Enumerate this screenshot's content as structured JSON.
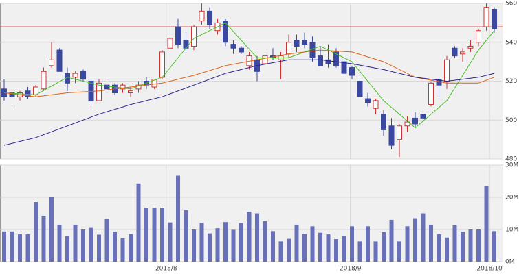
{
  "chart_data": [
    {
      "type": "candlestick",
      "open": [
        516,
        514,
        512,
        515,
        513,
        516,
        528,
        536,
        524,
        522,
        525,
        520,
        510,
        518,
        518,
        516,
        514,
        516,
        520,
        517,
        522,
        537,
        548,
        541,
        538,
        551,
        556,
        546,
        551,
        539,
        537,
        528,
        531,
        529,
        533,
        531,
        534,
        541,
        541,
        540,
        533,
        531,
        535,
        530,
        527,
        520,
        511,
        506,
        503,
        497,
        490,
        497,
        501,
        503,
        508,
        521,
        520,
        537,
        534,
        537,
        540,
        548,
        557
      ],
      "high": [
        521,
        516,
        515,
        517,
        518,
        527,
        540,
        537,
        527,
        525,
        526,
        521,
        521,
        521,
        519,
        519,
        517,
        520,
        522,
        521,
        536,
        544,
        552,
        545,
        549,
        560,
        558,
        552,
        552,
        541,
        538,
        535,
        533,
        534,
        537,
        535,
        544,
        544,
        545,
        543,
        538,
        539,
        537,
        532,
        528,
        522,
        514,
        511,
        505,
        501,
        498,
        502,
        504,
        504,
        520,
        522,
        533,
        538,
        537,
        541,
        547,
        560,
        558
      ],
      "low": [
        510,
        507,
        510,
        511,
        512,
        515,
        527,
        525,
        515,
        519,
        520,
        508,
        510,
        515,
        513,
        514,
        512,
        514,
        516,
        516,
        521,
        535,
        537,
        535,
        536,
        549,
        547,
        544,
        538,
        534,
        534,
        526,
        520,
        528,
        531,
        521,
        532,
        535,
        537,
        530,
        528,
        527,
        527,
        523,
        521,
        512,
        507,
        503,
        492,
        485,
        481,
        494,
        496,
        499,
        507,
        512,
        516,
        532,
        530,
        535,
        538,
        546,
        545
      ],
      "close": [
        512,
        512,
        514,
        512,
        517,
        525,
        531,
        525,
        519,
        524,
        521,
        510,
        519,
        516,
        514,
        518,
        515,
        518,
        518,
        521,
        535,
        542,
        539,
        537,
        548,
        556,
        549,
        550,
        540,
        537,
        535,
        533,
        525,
        533,
        532,
        533,
        540,
        538,
        539,
        532,
        528,
        529,
        528,
        524,
        523,
        512,
        509,
        510,
        495,
        487,
        497,
        499,
        498,
        501,
        519,
        518,
        531,
        533,
        535,
        538,
        546,
        558,
        547
      ],
      "up_color": "#d03030",
      "down_color": "#3a48a0",
      "series": [
        {
          "color": "#44c020",
          "x": [
            0,
            4,
            8,
            12,
            16,
            20,
            24,
            28,
            32,
            36,
            40,
            44,
            48,
            52,
            56,
            60,
            62
          ],
          "values": [
            514,
            513,
            522,
            518,
            516,
            522,
            542,
            550,
            532,
            532,
            538,
            530,
            510,
            496,
            510,
            536,
            546
          ]
        },
        {
          "color": "#e06010",
          "x": [
            0,
            4,
            8,
            12,
            16,
            20,
            24,
            28,
            32,
            36,
            40,
            44,
            48,
            52,
            56,
            60,
            62
          ],
          "values": [
            514,
            512,
            514,
            515,
            517,
            519,
            523,
            528,
            531,
            534,
            536,
            535,
            530,
            522,
            519,
            519,
            522
          ]
        },
        {
          "color": "#302090",
          "x": [
            0,
            4,
            8,
            12,
            16,
            20,
            24,
            28,
            32,
            36,
            40,
            44,
            48,
            52,
            56,
            60,
            62
          ],
          "values": [
            487,
            491,
            497,
            503,
            508,
            512,
            518,
            524,
            528,
            531,
            531,
            529,
            526,
            522,
            520,
            522,
            524
          ]
        }
      ],
      "reference_line": 548,
      "reference_color": "#e06060",
      "ylim": [
        480,
        560
      ],
      "yticks": [
        480,
        500,
        520,
        540,
        560
      ],
      "xticks": [
        {
          "value": 20.5,
          "label": "2018/8"
        },
        {
          "value": 43.8,
          "label": "2018/9"
        },
        {
          "value": 61.4,
          "label": "2018/10"
        }
      ],
      "grid": true
    },
    {
      "type": "bar",
      "color": "#6870b8",
      "values": [
        9.4,
        9.4,
        8.5,
        8.5,
        18.5,
        14.2,
        20,
        11.5,
        8,
        11.5,
        10,
        10.5,
        8.4,
        13.3,
        9.3,
        7.3,
        8.6,
        24.3,
        16.8,
        16.8,
        16.8,
        12.2,
        26.7,
        16,
        10,
        12,
        8.8,
        10.4,
        12.3,
        9.9,
        12,
        15.5,
        15,
        12.6,
        9.5,
        6.3,
        7.1,
        11.5,
        8.6,
        11,
        9,
        8.5,
        7,
        8,
        11,
        6.3,
        11,
        6.3,
        9.2,
        13,
        6.3,
        11,
        13.5,
        15,
        11.5,
        8.5,
        7.5,
        11.3,
        9.3,
        10,
        10,
        23.5,
        9.5
      ],
      "ylim": [
        0,
        30
      ],
      "yticks": [
        {
          "value": 0,
          "label": "0M"
        },
        {
          "value": 10,
          "label": "10M"
        },
        {
          "value": 20,
          "label": "20M"
        },
        {
          "value": 30,
          "label": "30M"
        }
      ],
      "grid": true
    }
  ]
}
